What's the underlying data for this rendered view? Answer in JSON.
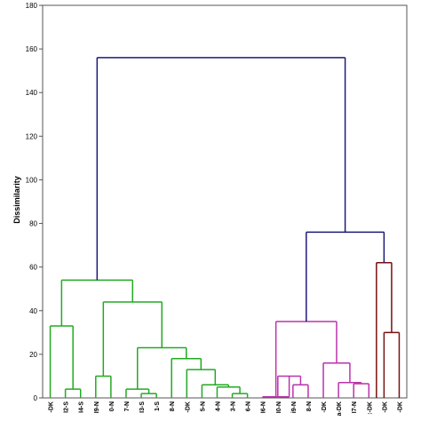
{
  "chart_data": {
    "type": "dendrogram",
    "title": "",
    "xlabel": "",
    "ylabel": "Dissimilarity",
    "ylim": [
      0,
      180
    ],
    "yticks": [
      0,
      20,
      40,
      60,
      80,
      100,
      120,
      140,
      160,
      180
    ],
    "grid": false,
    "legend": "none",
    "colors": {
      "green": "#22aa22",
      "magenta": "#bb33aa",
      "darkred": "#771111",
      "navy": "#1a1a7a",
      "axis": "#555555"
    },
    "leaves": [
      "-DK",
      "I2-S",
      "I4-S",
      "I9-N",
      "0-N",
      "7-N",
      "I3-S",
      "1-S",
      "8-N",
      "-DK",
      "5-N",
      "4-N",
      "3-N",
      "6-N",
      "I6-N",
      "I0-N",
      "i9-N",
      "8-N",
      "-DK",
      "a-DK",
      "I7-N",
      ":-DK",
      "-DK",
      "-DK"
    ],
    "merges": [
      {
        "id": "m1",
        "left": 1,
        "right": 2,
        "height": 4,
        "color": "green"
      },
      {
        "id": "m2",
        "left": 0,
        "right": "m1",
        "height": 33,
        "color": "green"
      },
      {
        "id": "m3",
        "left": 3,
        "right": 4,
        "height": 10,
        "color": "green"
      },
      {
        "id": "m4",
        "left": 6,
        "right": 7,
        "height": 2,
        "color": "green"
      },
      {
        "id": "m5",
        "left": 5,
        "right": "m4",
        "height": 4,
        "color": "green"
      },
      {
        "id": "m6",
        "left": 12,
        "right": 13,
        "height": 2,
        "color": "green"
      },
      {
        "id": "m7",
        "left": 11,
        "right": "m6",
        "height": 5,
        "color": "green"
      },
      {
        "id": "m8",
        "left": 10,
        "right": "m7",
        "height": 6,
        "color": "green"
      },
      {
        "id": "m9",
        "left": 9,
        "right": "m8",
        "height": 13,
        "color": "green"
      },
      {
        "id": "m10",
        "left": 8,
        "right": "m9",
        "height": 18,
        "color": "green"
      },
      {
        "id": "m11",
        "left": "m5",
        "right": "m10",
        "height": 23,
        "color": "green"
      },
      {
        "id": "m12",
        "left": "m3",
        "right": "m11",
        "height": 44,
        "color": "green"
      },
      {
        "id": "m13",
        "left": "m2",
        "right": "m12",
        "height": 54,
        "color": "green"
      },
      {
        "id": "m14",
        "left": 16,
        "right": 17,
        "height": 6,
        "color": "magenta"
      },
      {
        "id": "m15",
        "left": 15,
        "right": "m14",
        "height": 10,
        "color": "magenta"
      },
      {
        "id": "m16",
        "left": 14,
        "right": "m15",
        "height": 0.5,
        "color": "magenta"
      },
      {
        "id": "m17",
        "left": 20,
        "right": 21,
        "height": 6.5,
        "color": "magenta"
      },
      {
        "id": "m18",
        "left": 19,
        "right": "m17",
        "height": 7,
        "color": "magenta"
      },
      {
        "id": "m19",
        "left": 18,
        "right": "m18",
        "height": 16,
        "color": "magenta"
      },
      {
        "id": "m20",
        "left": "m16",
        "right": "m19",
        "height": 35,
        "color": "magenta"
      },
      {
        "id": "m21",
        "left": 22,
        "right": 23,
        "height": 30,
        "color": "darkred"
      },
      {
        "id": "m22",
        "left": 21.5,
        "right": "m21",
        "height": 62,
        "color": "darkred",
        "leftIsX": true
      },
      {
        "id": "m23",
        "left": "m20",
        "right": "m22",
        "height": 76,
        "color": "navy"
      },
      {
        "id": "m24",
        "left": "m13",
        "right": "m23",
        "height": 156,
        "color": "navy"
      }
    ]
  }
}
